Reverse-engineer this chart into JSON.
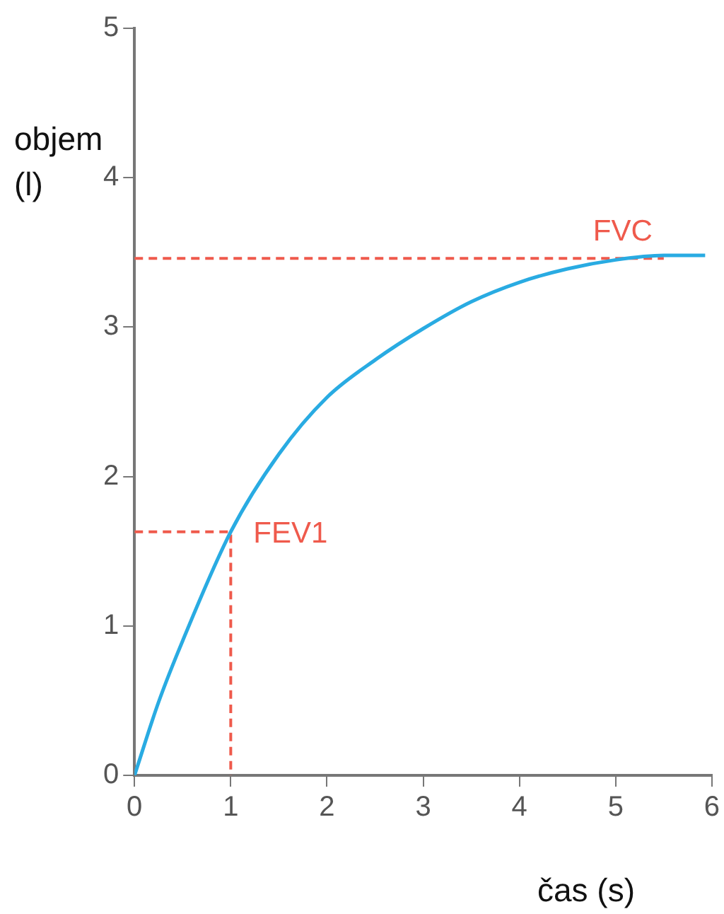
{
  "chart_data": {
    "type": "line",
    "xlabel": "čas (s)",
    "ylabel": "objem (l)",
    "xlim": [
      0,
      6
    ],
    "xticks": [
      0,
      1,
      2,
      3,
      4,
      5,
      6
    ],
    "ylim": [
      0,
      5
    ],
    "yticks": [
      0,
      1,
      2,
      3,
      4,
      5
    ],
    "grid": false,
    "legend": false,
    "marker": "none",
    "series": [
      {
        "color": "#29abe2",
        "x": [
          0,
          0.25,
          0.5,
          1,
          1.5,
          2,
          2.5,
          3,
          3.5,
          4,
          4.5,
          5,
          5.5,
          5.93
        ],
        "values": [
          0,
          0.49,
          0.9,
          1.63,
          2.15,
          2.53,
          2.78,
          2.99,
          3.17,
          3.3,
          3.39,
          3.45,
          3.48,
          3.48
        ]
      },
      {
        "color": "#ef5a4c",
        "line_style": "dashed",
        "x": [
          0,
          5.5
        ],
        "values": [
          3.46,
          3.46
        ]
      },
      {
        "color": "#ef5a4c",
        "line_style": "dashed",
        "x": [
          0,
          1,
          1
        ],
        "values": [
          1.63,
          1.63,
          0
        ]
      }
    ],
    "annotations": [
      {
        "text": "FVC",
        "x": 5,
        "y": 3.46
      },
      {
        "text": "FEV1",
        "x": 1,
        "y": 1.63
      }
    ]
  }
}
